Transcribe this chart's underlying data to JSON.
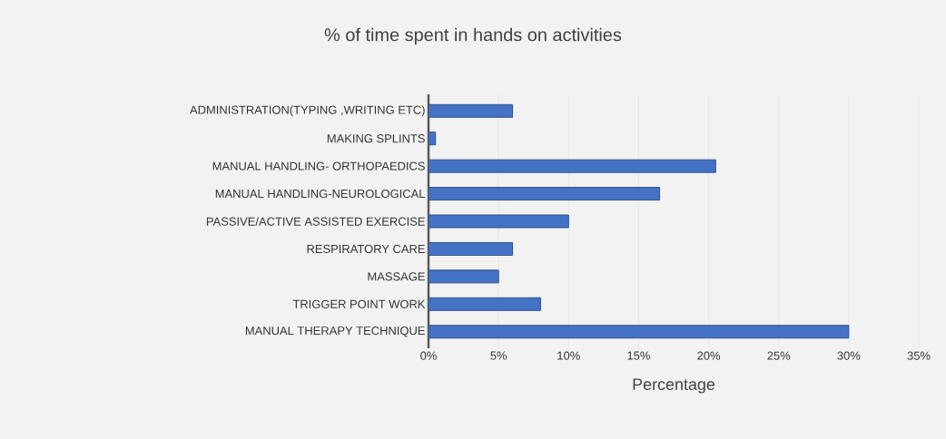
{
  "chart_data": {
    "type": "bar",
    "orientation": "horizontal",
    "title": "% of time spent in hands on activities",
    "xlabel": "Percentage",
    "categories": [
      "ADMINISTRATION(TYPING ,WRITING ETC)",
      "MAKING SPLINTS",
      "MANUAL HANDLING- ORTHOPAEDICS",
      "MANUAL HANDLING-NEUROLOGICAL",
      "PASSIVE/ACTIVE ASSISTED EXERCISE",
      "RESPIRATORY CARE",
      "MASSAGE",
      "TRIGGER POINT WORK",
      "MANUAL THERAPY TECHNIQUE"
    ],
    "values": [
      6,
      0.5,
      20.5,
      16.5,
      10,
      6,
      5,
      8,
      30
    ],
    "color": "#4472c4",
    "xlim": [
      0,
      35
    ],
    "xticks": [
      {
        "value": 0,
        "label": "0%"
      },
      {
        "value": 5,
        "label": "5%"
      },
      {
        "value": 10,
        "label": "10%"
      },
      {
        "value": 15,
        "label": "15%"
      },
      {
        "value": 20,
        "label": "20%"
      },
      {
        "value": 25,
        "label": "25%"
      },
      {
        "value": 30,
        "label": "30%"
      },
      {
        "value": 35,
        "label": "35%"
      }
    ],
    "grid": "x"
  }
}
